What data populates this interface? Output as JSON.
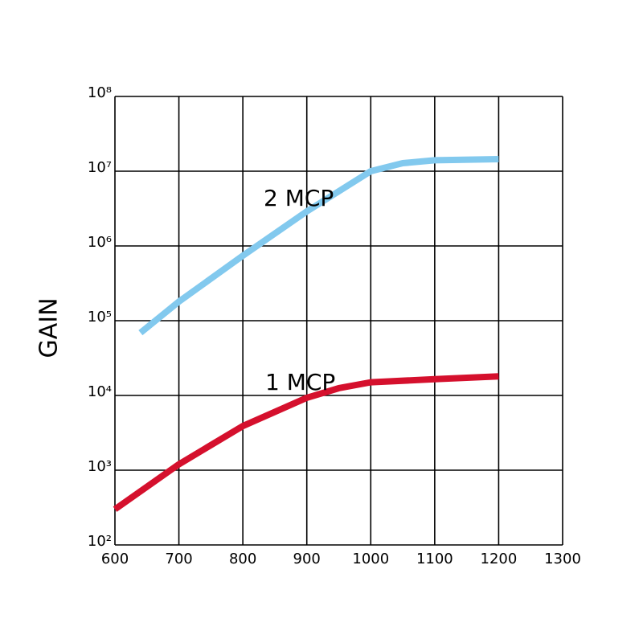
{
  "chart_data": {
    "type": "line",
    "y_label": "GAIN",
    "log_y": true,
    "grid": true,
    "xlim": [
      600,
      1300
    ],
    "xticks": [
      600,
      700,
      800,
      900,
      1000,
      1100,
      1200,
      1300
    ],
    "ylim": [
      100,
      100000000
    ],
    "yticks": [
      {
        "value": 100,
        "label": "10²"
      },
      {
        "value": 1000,
        "label": "10³"
      },
      {
        "value": 10000,
        "label": "10⁴"
      },
      {
        "value": 100000,
        "label": "10⁵"
      },
      {
        "value": 1000000,
        "label": "10⁶"
      },
      {
        "value": 10000000,
        "label": "10⁷"
      },
      {
        "value": 100000000,
        "label": "10⁸"
      }
    ],
    "series": [
      {
        "name": "2 MCP",
        "color": "#82c9ee",
        "x": [
          640,
          700,
          800,
          900,
          1000,
          1050,
          1100,
          1200
        ],
        "values": [
          69000,
          180000,
          740000,
          2900000,
          10000000,
          12800000,
          14000000,
          14500000
        ]
      },
      {
        "name": "1 MCP",
        "color": "#d5102d",
        "x": [
          600,
          700,
          800,
          900,
          950,
          1000,
          1100,
          1200
        ],
        "values": [
          300,
          1200,
          3900,
          9300,
          12500,
          15000,
          16500,
          18000
        ]
      }
    ]
  }
}
